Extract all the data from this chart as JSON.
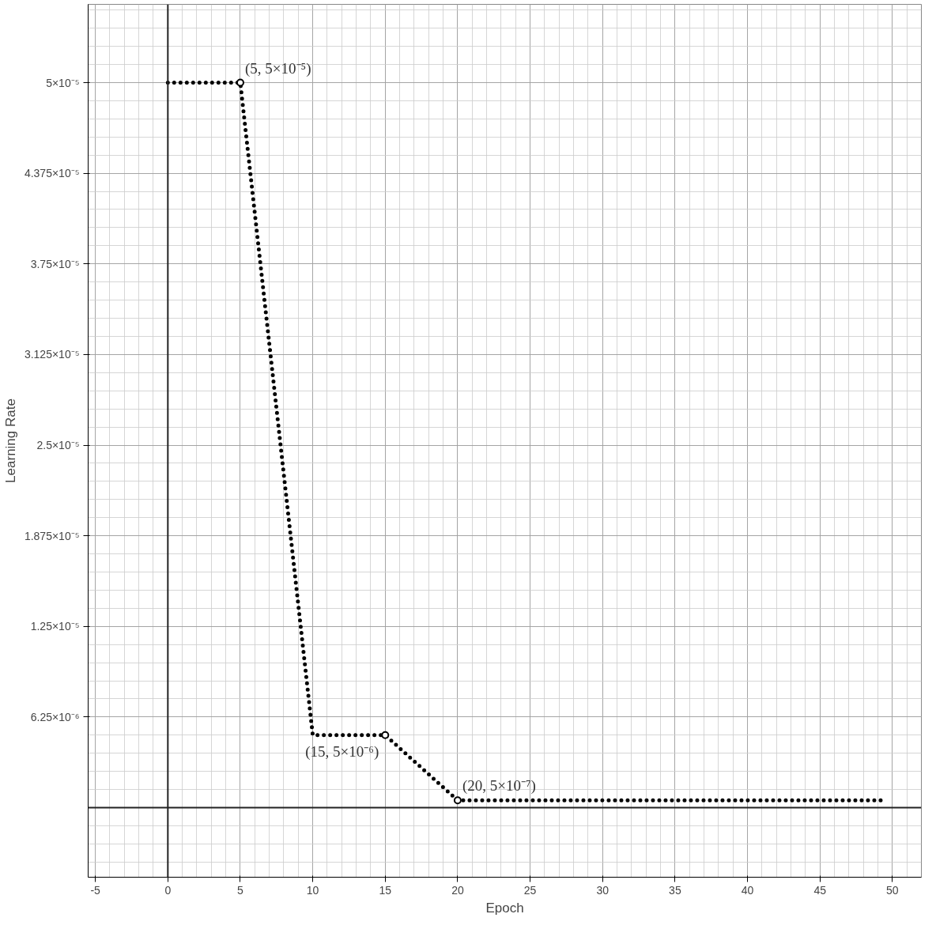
{
  "chart_data": {
    "type": "line",
    "xlabel": "Epoch",
    "ylabel": "Learning Rate",
    "series": [
      {
        "color": "#000000",
        "x": [
          0,
          5,
          10,
          15,
          20,
          49.6
        ],
        "values": [
          5e-05,
          5e-05,
          5e-06,
          5e-06,
          5e-07,
          5e-07
        ],
        "line_style": "dotted",
        "marker": "none"
      },
      {
        "type": "scatter",
        "color": "#000000",
        "x": [
          5,
          15,
          20
        ],
        "values": [
          5e-05,
          5e-06,
          5e-07
        ],
        "marker": "circle"
      }
    ],
    "xlim": [
      -5.5,
      52
    ],
    "ylim": [
      -4.8e-06,
      5.54e-05
    ],
    "xticks": [
      -5,
      0,
      5,
      10,
      15,
      20,
      25,
      30,
      35,
      40,
      45,
      50
    ],
    "yticks": [
      {
        "value": 6.25e-06,
        "label": "6.25×10⁻⁶"
      },
      {
        "value": 1.25e-05,
        "label": "1.25×10⁻⁵"
      },
      {
        "value": 1.875e-05,
        "label": "1.875×10⁻⁵"
      },
      {
        "value": 2.5e-05,
        "label": "2.5×10⁻⁵"
      },
      {
        "value": 3.125e-05,
        "label": "3.125×10⁻⁵"
      },
      {
        "value": 3.75e-05,
        "label": "3.75×10⁻⁵"
      },
      {
        "value": 4.375e-05,
        "label": "4.375×10⁻⁵"
      },
      {
        "value": 5e-05,
        "label": "5×10⁻⁵"
      }
    ],
    "grid": true,
    "annotations": [
      {
        "text": "(5, 5×10⁻⁵)",
        "x": 5,
        "y": 5e-05
      },
      {
        "text": "(15, 5×10⁻⁶)",
        "x": 15,
        "y": 5e-06
      },
      {
        "text": "(20, 5×10⁻⁷)",
        "x": 20,
        "y": 5e-07
      }
    ]
  }
}
